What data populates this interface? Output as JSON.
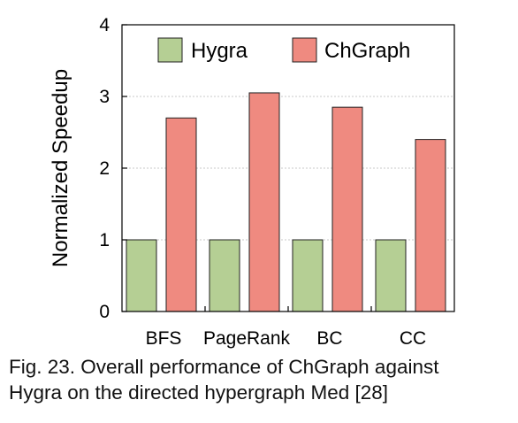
{
  "chart_data": {
    "type": "bar",
    "categories": [
      "BFS",
      "PageRank",
      "BC",
      "CC"
    ],
    "series": [
      {
        "name": "Hygra",
        "values": [
          1.0,
          1.0,
          1.0,
          1.0
        ]
      },
      {
        "name": "ChGraph",
        "values": [
          2.7,
          3.05,
          2.85,
          2.4
        ]
      }
    ],
    "ylabel": "Normalized Speedup",
    "xlabel": "",
    "ylim": [
      0,
      4
    ],
    "yticks": [
      0,
      1,
      2,
      3,
      4
    ],
    "grid": true,
    "legend": "top-center",
    "colors": {
      "Hygra": "#b5cf94",
      "ChGraph": "#ef8a80"
    }
  },
  "caption": {
    "line1": "Fig. 23. Overall performance of ChGraph against",
    "line2": "Hygra on the directed hypergraph Med [28]"
  }
}
